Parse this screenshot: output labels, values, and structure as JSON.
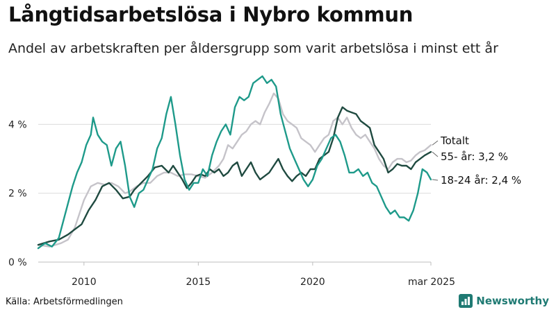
{
  "header": {
    "title": "Långtidsarbetslösa i Nybro kommun",
    "subtitle": "Andel av arbetskraften per åldersgrupp som varit arbetslösa i minst ett år"
  },
  "footer": {
    "source": "Källa: Arbetsförmedlingen",
    "brand": "Newsworthy"
  },
  "chart_data": {
    "type": "line",
    "title": "Långtidsarbetslösa i Nybro kommun",
    "subtitle": "Andel av arbetskraften per åldersgrupp som varit arbetslösa i minst ett år",
    "x_ticks": [
      {
        "value": 2010.0,
        "label": "2010"
      },
      {
        "value": 2015.0,
        "label": "2015"
      },
      {
        "value": 2020.0,
        "label": "2020"
      },
      {
        "value": 2025.17,
        "label": "mar 2025"
      }
    ],
    "y_ticks": [
      {
        "value": 0,
        "label": "0 %"
      },
      {
        "value": 2,
        "label": "2 %"
      },
      {
        "value": 4,
        "label": "4 %"
      }
    ],
    "xlim": [
      2008.0,
      2025.17
    ],
    "ylim": [
      0,
      5.6
    ],
    "grid": true,
    "series": [
      {
        "name": "Totalt",
        "label": "Totalt",
        "color": "#c5c3c9",
        "points": [
          [
            2008.0,
            0.5
          ],
          [
            2008.5,
            0.45
          ],
          [
            2009.0,
            0.55
          ],
          [
            2009.3,
            0.65
          ],
          [
            2009.6,
            1.0
          ],
          [
            2009.8,
            1.4
          ],
          [
            2010.0,
            1.8
          ],
          [
            2010.3,
            2.2
          ],
          [
            2010.6,
            2.3
          ],
          [
            2010.9,
            2.25
          ],
          [
            2011.2,
            2.3
          ],
          [
            2011.5,
            2.2
          ],
          [
            2011.8,
            2.0
          ],
          [
            2012.0,
            2.05
          ],
          [
            2012.3,
            2.2
          ],
          [
            2012.6,
            2.3
          ],
          [
            2012.9,
            2.3
          ],
          [
            2013.2,
            2.5
          ],
          [
            2013.5,
            2.6
          ],
          [
            2013.8,
            2.6
          ],
          [
            2014.1,
            2.5
          ],
          [
            2014.4,
            2.55
          ],
          [
            2014.7,
            2.55
          ],
          [
            2015.0,
            2.5
          ],
          [
            2015.3,
            2.45
          ],
          [
            2015.6,
            2.6
          ],
          [
            2015.9,
            2.8
          ],
          [
            2016.1,
            3.0
          ],
          [
            2016.3,
            3.4
          ],
          [
            2016.5,
            3.3
          ],
          [
            2016.7,
            3.5
          ],
          [
            2016.9,
            3.7
          ],
          [
            2017.1,
            3.8
          ],
          [
            2017.3,
            4.0
          ],
          [
            2017.5,
            4.1
          ],
          [
            2017.7,
            4.0
          ],
          [
            2017.9,
            4.35
          ],
          [
            2018.1,
            4.6
          ],
          [
            2018.3,
            4.9
          ],
          [
            2018.5,
            4.75
          ],
          [
            2018.7,
            4.3
          ],
          [
            2018.9,
            4.1
          ],
          [
            2019.1,
            4.0
          ],
          [
            2019.3,
            3.9
          ],
          [
            2019.5,
            3.6
          ],
          [
            2019.7,
            3.5
          ],
          [
            2019.9,
            3.4
          ],
          [
            2020.1,
            3.2
          ],
          [
            2020.3,
            3.4
          ],
          [
            2020.5,
            3.6
          ],
          [
            2020.7,
            3.7
          ],
          [
            2020.9,
            4.1
          ],
          [
            2021.1,
            4.2
          ],
          [
            2021.3,
            4.0
          ],
          [
            2021.5,
            4.2
          ],
          [
            2021.7,
            3.9
          ],
          [
            2021.9,
            3.7
          ],
          [
            2022.1,
            3.6
          ],
          [
            2022.3,
            3.7
          ],
          [
            2022.5,
            3.5
          ],
          [
            2022.7,
            3.3
          ],
          [
            2022.9,
            3.0
          ],
          [
            2023.1,
            2.8
          ],
          [
            2023.3,
            2.7
          ],
          [
            2023.5,
            2.9
          ],
          [
            2023.7,
            3.0
          ],
          [
            2023.9,
            3.0
          ],
          [
            2024.1,
            2.9
          ],
          [
            2024.3,
            2.95
          ],
          [
            2024.5,
            3.1
          ],
          [
            2024.7,
            3.2
          ],
          [
            2024.9,
            3.25
          ],
          [
            2025.17,
            3.4
          ]
        ]
      },
      {
        "name": "55- år",
        "label": "55- år: 3,2 %",
        "color": "#1f4a40",
        "points": [
          [
            2008.0,
            0.5
          ],
          [
            2008.5,
            0.6
          ],
          [
            2008.9,
            0.65
          ],
          [
            2009.3,
            0.8
          ],
          [
            2009.6,
            0.95
          ],
          [
            2009.9,
            1.1
          ],
          [
            2010.2,
            1.5
          ],
          [
            2010.5,
            1.8
          ],
          [
            2010.8,
            2.2
          ],
          [
            2011.1,
            2.3
          ],
          [
            2011.4,
            2.1
          ],
          [
            2011.7,
            1.85
          ],
          [
            2012.0,
            1.9
          ],
          [
            2012.2,
            2.1
          ],
          [
            2012.5,
            2.3
          ],
          [
            2012.8,
            2.5
          ],
          [
            2013.1,
            2.75
          ],
          [
            2013.4,
            2.8
          ],
          [
            2013.7,
            2.6
          ],
          [
            2013.9,
            2.8
          ],
          [
            2014.1,
            2.6
          ],
          [
            2014.3,
            2.4
          ],
          [
            2014.5,
            2.15
          ],
          [
            2014.7,
            2.3
          ],
          [
            2014.9,
            2.5
          ],
          [
            2015.1,
            2.55
          ],
          [
            2015.3,
            2.5
          ],
          [
            2015.5,
            2.7
          ],
          [
            2015.7,
            2.6
          ],
          [
            2015.9,
            2.7
          ],
          [
            2016.1,
            2.5
          ],
          [
            2016.3,
            2.6
          ],
          [
            2016.5,
            2.8
          ],
          [
            2016.7,
            2.9
          ],
          [
            2016.9,
            2.5
          ],
          [
            2017.1,
            2.7
          ],
          [
            2017.3,
            2.9
          ],
          [
            2017.5,
            2.6
          ],
          [
            2017.7,
            2.4
          ],
          [
            2017.9,
            2.5
          ],
          [
            2018.1,
            2.6
          ],
          [
            2018.3,
            2.8
          ],
          [
            2018.5,
            3.0
          ],
          [
            2018.7,
            2.7
          ],
          [
            2018.9,
            2.5
          ],
          [
            2019.1,
            2.35
          ],
          [
            2019.3,
            2.5
          ],
          [
            2019.5,
            2.6
          ],
          [
            2019.7,
            2.5
          ],
          [
            2019.9,
            2.7
          ],
          [
            2020.1,
            2.7
          ],
          [
            2020.3,
            3.0
          ],
          [
            2020.5,
            3.1
          ],
          [
            2020.7,
            3.2
          ],
          [
            2020.9,
            3.6
          ],
          [
            2021.1,
            4.2
          ],
          [
            2021.3,
            4.5
          ],
          [
            2021.5,
            4.4
          ],
          [
            2021.7,
            4.35
          ],
          [
            2021.9,
            4.3
          ],
          [
            2022.1,
            4.1
          ],
          [
            2022.3,
            4.0
          ],
          [
            2022.5,
            3.9
          ],
          [
            2022.7,
            3.4
          ],
          [
            2022.9,
            3.2
          ],
          [
            2023.1,
            3.0
          ],
          [
            2023.3,
            2.6
          ],
          [
            2023.5,
            2.7
          ],
          [
            2023.7,
            2.85
          ],
          [
            2023.9,
            2.8
          ],
          [
            2024.1,
            2.8
          ],
          [
            2024.3,
            2.7
          ],
          [
            2024.5,
            2.9
          ],
          [
            2024.7,
            3.0
          ],
          [
            2024.9,
            3.1
          ],
          [
            2025.17,
            3.2
          ]
        ]
      },
      {
        "name": "18-24 år",
        "label": "18-24 år: 2,4 %",
        "color": "#1e9a8a",
        "points": [
          [
            2008.0,
            0.4
          ],
          [
            2008.3,
            0.55
          ],
          [
            2008.6,
            0.45
          ],
          [
            2008.9,
            0.7
          ],
          [
            2009.1,
            1.2
          ],
          [
            2009.3,
            1.7
          ],
          [
            2009.5,
            2.2
          ],
          [
            2009.7,
            2.6
          ],
          [
            2009.9,
            2.9
          ],
          [
            2010.1,
            3.4
          ],
          [
            2010.3,
            3.7
          ],
          [
            2010.4,
            4.2
          ],
          [
            2010.6,
            3.7
          ],
          [
            2010.8,
            3.5
          ],
          [
            2011.0,
            3.4
          ],
          [
            2011.2,
            2.8
          ],
          [
            2011.4,
            3.3
          ],
          [
            2011.6,
            3.5
          ],
          [
            2011.8,
            2.8
          ],
          [
            2012.0,
            1.9
          ],
          [
            2012.2,
            1.6
          ],
          [
            2012.4,
            2.0
          ],
          [
            2012.6,
            2.1
          ],
          [
            2012.8,
            2.4
          ],
          [
            2013.0,
            2.7
          ],
          [
            2013.2,
            3.3
          ],
          [
            2013.4,
            3.6
          ],
          [
            2013.6,
            4.3
          ],
          [
            2013.8,
            4.8
          ],
          [
            2014.0,
            4.0
          ],
          [
            2014.2,
            3.1
          ],
          [
            2014.4,
            2.4
          ],
          [
            2014.6,
            2.1
          ],
          [
            2014.8,
            2.3
          ],
          [
            2015.0,
            2.3
          ],
          [
            2015.2,
            2.7
          ],
          [
            2015.4,
            2.5
          ],
          [
            2015.6,
            3.1
          ],
          [
            2015.8,
            3.5
          ],
          [
            2016.0,
            3.8
          ],
          [
            2016.2,
            4.0
          ],
          [
            2016.4,
            3.7
          ],
          [
            2016.6,
            4.5
          ],
          [
            2016.8,
            4.8
          ],
          [
            2017.0,
            4.7
          ],
          [
            2017.2,
            4.8
          ],
          [
            2017.4,
            5.2
          ],
          [
            2017.6,
            5.3
          ],
          [
            2017.8,
            5.4
          ],
          [
            2018.0,
            5.2
          ],
          [
            2018.2,
            5.3
          ],
          [
            2018.4,
            5.1
          ],
          [
            2018.6,
            4.3
          ],
          [
            2018.8,
            3.8
          ],
          [
            2019.0,
            3.3
          ],
          [
            2019.2,
            3.0
          ],
          [
            2019.4,
            2.7
          ],
          [
            2019.6,
            2.4
          ],
          [
            2019.8,
            2.2
          ],
          [
            2020.0,
            2.4
          ],
          [
            2020.2,
            2.8
          ],
          [
            2020.4,
            3.0
          ],
          [
            2020.6,
            3.3
          ],
          [
            2020.8,
            3.6
          ],
          [
            2021.0,
            3.7
          ],
          [
            2021.2,
            3.5
          ],
          [
            2021.4,
            3.1
          ],
          [
            2021.6,
            2.6
          ],
          [
            2021.8,
            2.6
          ],
          [
            2022.0,
            2.7
          ],
          [
            2022.2,
            2.5
          ],
          [
            2022.4,
            2.6
          ],
          [
            2022.6,
            2.3
          ],
          [
            2022.8,
            2.2
          ],
          [
            2023.0,
            1.9
          ],
          [
            2023.2,
            1.6
          ],
          [
            2023.4,
            1.4
          ],
          [
            2023.6,
            1.5
          ],
          [
            2023.8,
            1.3
          ],
          [
            2024.0,
            1.3
          ],
          [
            2024.2,
            1.2
          ],
          [
            2024.4,
            1.5
          ],
          [
            2024.6,
            2.0
          ],
          [
            2024.8,
            2.7
          ],
          [
            2025.0,
            2.6
          ],
          [
            2025.17,
            2.4
          ]
        ]
      }
    ]
  }
}
